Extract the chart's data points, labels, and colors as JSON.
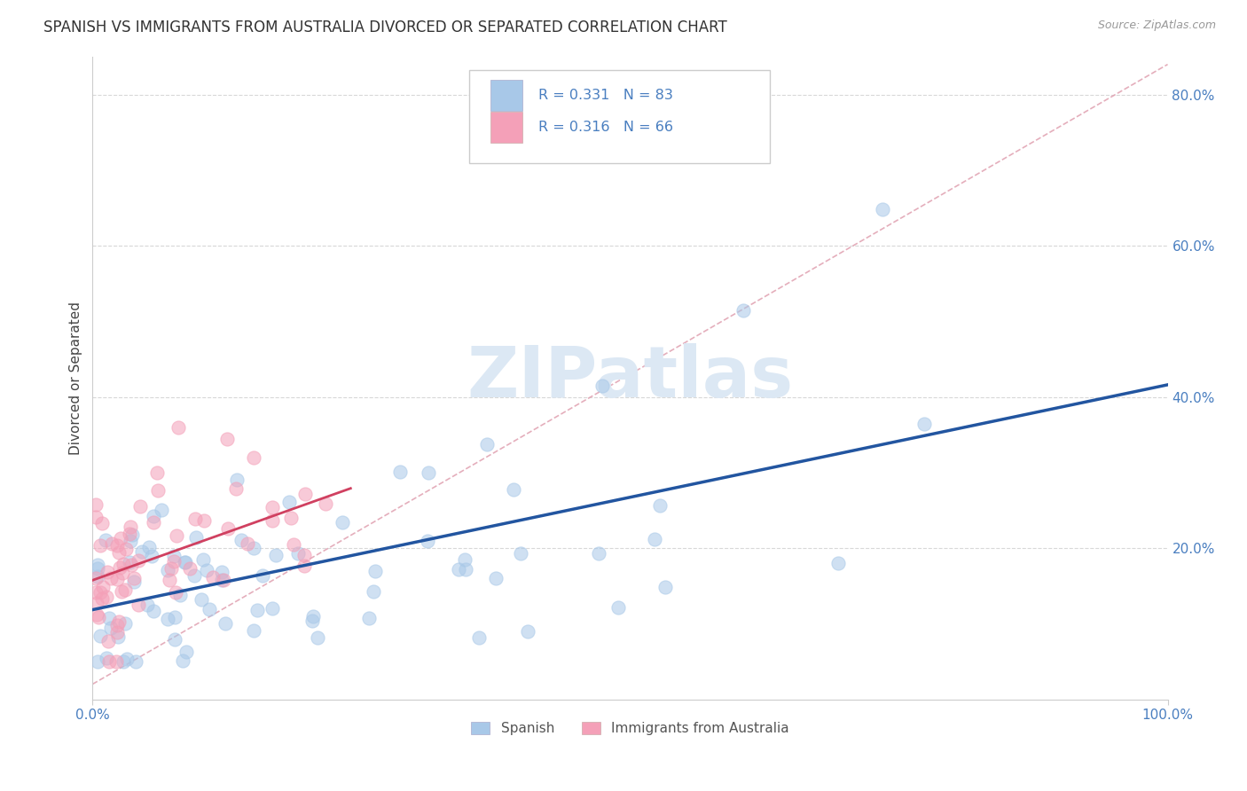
{
  "title": "SPANISH VS IMMIGRANTS FROM AUSTRALIA DIVORCED OR SEPARATED CORRELATION CHART",
  "source_text": "Source: ZipAtlas.com",
  "ylabel": "Divorced or Separated",
  "xlim": [
    0,
    1.0
  ],
  "ylim": [
    0,
    0.85
  ],
  "xtick_labels": [
    "0.0%",
    "100.0%"
  ],
  "ytick_labels": [
    "20.0%",
    "40.0%",
    "60.0%",
    "80.0%"
  ],
  "ytick_values": [
    0.2,
    0.4,
    0.6,
    0.8
  ],
  "legend_r1": "0.331",
  "legend_n1": "83",
  "legend_r2": "0.316",
  "legend_n2": "66",
  "color_blue_dot": "#a8c8e8",
  "color_pink_dot": "#f4a0b8",
  "color_blue_text": "#4a7fc0",
  "color_line_blue": "#2255a0",
  "color_line_pink": "#d04060",
  "color_trendline": "#e0a0b0",
  "watermark_color": "#dce8f4",
  "background_color": "#ffffff",
  "title_fontsize": 12,
  "axis_label_fontsize": 11,
  "tick_fontsize": 11,
  "grid_color": "#d8d8d8",
  "dot_size": 120,
  "dot_alpha": 0.55,
  "dot_linewidth": 0.8
}
